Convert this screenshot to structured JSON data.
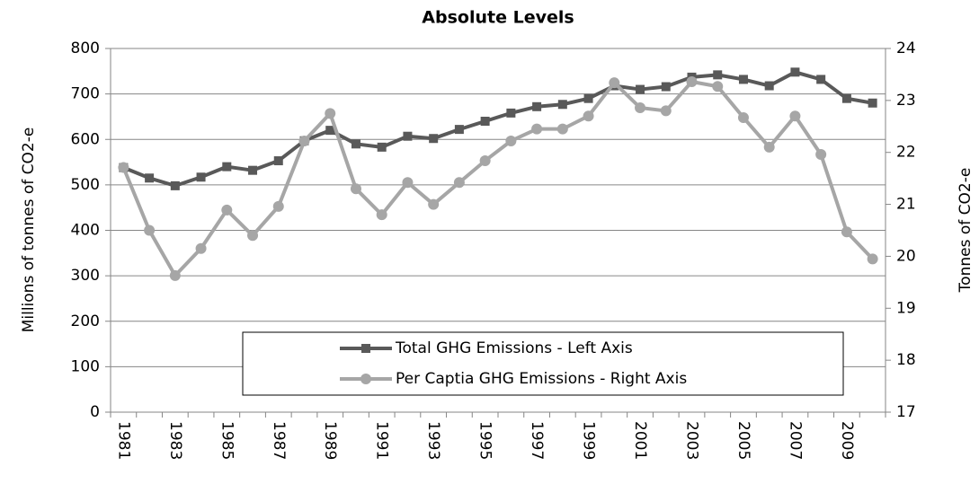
{
  "chart_data": {
    "type": "line",
    "title": "Absolute Levels",
    "y_label": "Millions of tonnes of CO2-e",
    "y2_label": "Tonnes of CO2-e",
    "categories": [
      "1981",
      null,
      "1983",
      null,
      "1985",
      null,
      "1987",
      null,
      "1989",
      null,
      "1991",
      null,
      "1993",
      null,
      "1995",
      null,
      "1997",
      null,
      "1999",
      null,
      "2001",
      null,
      "2003",
      null,
      "2005",
      null,
      "2007",
      null,
      "2009",
      null
    ],
    "series": [
      {
        "name": "Total GHG Emissions - Left Axis",
        "color": "#595959",
        "marker": "square",
        "axis": "y",
        "values": [
          538,
          515,
          498,
          517,
          540,
          532,
          553,
          597,
          620,
          590,
          583,
          607,
          602,
          622,
          640,
          658,
          672,
          677,
          690,
          718,
          710,
          716,
          737,
          742,
          732,
          718,
          748,
          732,
          690,
          680
        ]
      },
      {
        "name": "Per Captia GHG Emissions - Right Axis",
        "color": "#a6a6a6",
        "marker": "circle",
        "axis": "y2",
        "values": [
          21.71,
          20.5,
          19.63,
          20.15,
          20.89,
          20.4,
          20.96,
          22.22,
          22.75,
          21.3,
          20.8,
          21.42,
          21.0,
          21.42,
          21.84,
          22.22,
          22.45,
          22.45,
          22.7,
          23.34,
          22.86,
          22.8,
          23.36,
          23.27,
          22.67,
          22.1,
          22.7,
          21.96,
          20.47,
          19.95
        ]
      }
    ],
    "ylim": [
      0,
      800
    ],
    "yticks": [
      0,
      100,
      200,
      300,
      400,
      500,
      600,
      700,
      800
    ],
    "y2lim": [
      17,
      24
    ],
    "y2ticks": [
      17,
      18,
      19,
      20,
      21,
      22,
      23,
      24
    ],
    "grid": true
  }
}
